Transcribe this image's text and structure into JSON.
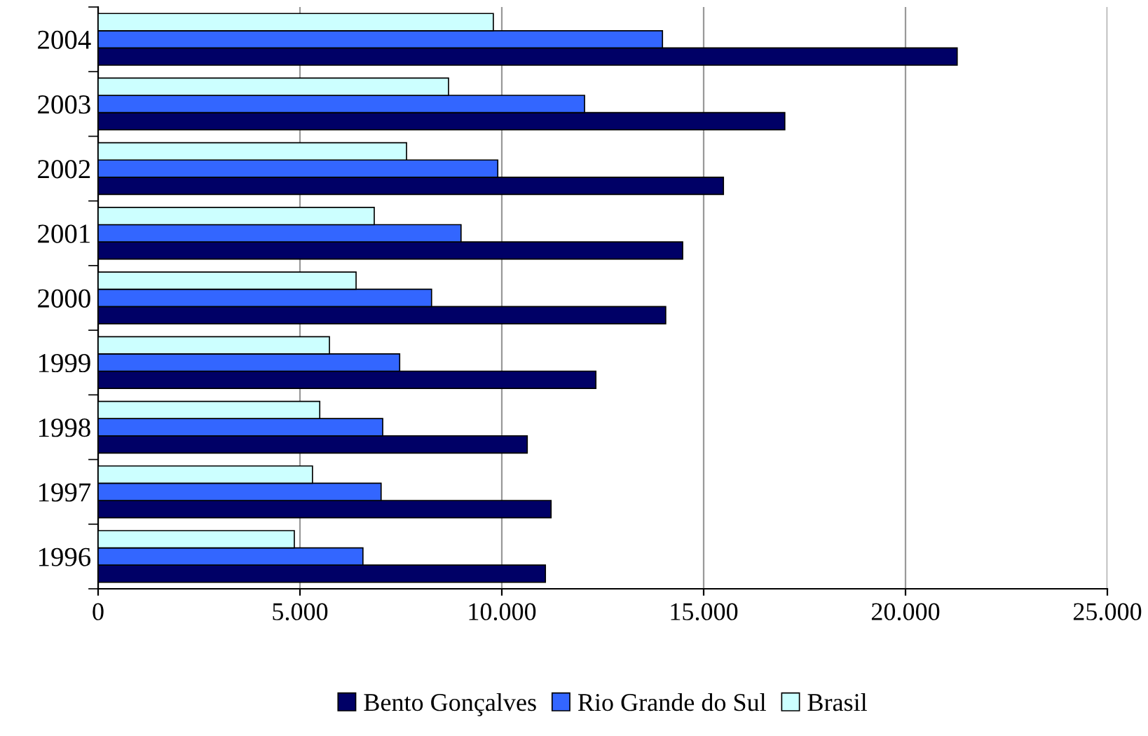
{
  "chart_data": {
    "type": "bar",
    "orientation": "horizontal",
    "categories": [
      "2004",
      "2003",
      "2002",
      "2001",
      "2000",
      "1999",
      "1998",
      "1997",
      "1996"
    ],
    "series": [
      {
        "name": "Bento Gonçalves",
        "color": "#000066",
        "values": [
          21280,
          17010,
          15490,
          14480,
          14060,
          12330,
          10630,
          11220,
          11080
        ]
      },
      {
        "name": "Rio Grande do Sul",
        "color": "#3366ff",
        "values": [
          13980,
          12050,
          9900,
          8990,
          8260,
          7470,
          7050,
          7010,
          6560
        ]
      },
      {
        "name": "Brasil",
        "color": "#ccffff",
        "values": [
          9790,
          8680,
          7640,
          6840,
          6390,
          5730,
          5490,
          5310,
          4860
        ]
      }
    ],
    "xlim": [
      0,
      25000
    ],
    "xticks": [
      0,
      {
        "value": 5000,
        "label": "5.000"
      },
      {
        "value": 10000,
        "label": "10.000"
      },
      {
        "value": 15000,
        "label": "15.000"
      },
      {
        "value": 20000,
        "label": "20.000"
      },
      {
        "value": 25000,
        "label": "25.000"
      }
    ],
    "grid": "x",
    "legend": "bottom"
  }
}
